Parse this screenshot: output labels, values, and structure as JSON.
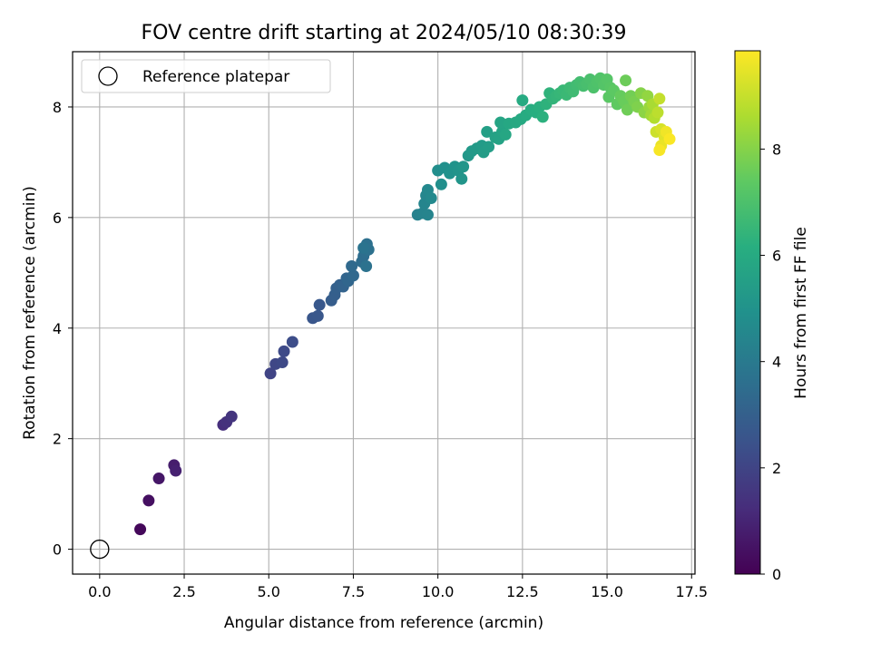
{
  "chart_data": {
    "type": "scatter",
    "title": "FOV centre drift starting at 2024/05/10 08:30:39",
    "xlabel": "Angular distance from reference (arcmin)",
    "ylabel": "Rotation from reference (arcmin)",
    "xlim": [
      -0.8,
      17.6
    ],
    "ylim": [
      -0.45,
      9.0
    ],
    "xticks": [
      0.0,
      2.5,
      5.0,
      7.5,
      10.0,
      12.5,
      15.0,
      17.5
    ],
    "xtick_labels": [
      "0.0",
      "2.5",
      "5.0",
      "7.5",
      "10.0",
      "12.5",
      "15.0",
      "17.5"
    ],
    "yticks": [
      0,
      2,
      4,
      6,
      8
    ],
    "ytick_labels": [
      "0",
      "2",
      "4",
      "6",
      "8"
    ],
    "grid": true,
    "legend": {
      "position": "top-left",
      "entries": [
        "Reference platepar"
      ]
    },
    "reference_point": {
      "x": 0.0,
      "y": 0.0,
      "label": "Reference platepar"
    },
    "colorbar": {
      "label": "Hours from first FF file",
      "colormap": "viridis",
      "range": [
        0,
        9.85
      ],
      "ticks": [
        0,
        2,
        4,
        6,
        8
      ],
      "tick_labels": [
        "0",
        "2",
        "4",
        "6",
        "8"
      ]
    },
    "series": [
      {
        "points": [
          [
            1.2,
            0.36,
            0.2
          ],
          [
            1.45,
            0.88,
            0.4
          ],
          [
            1.75,
            1.28,
            0.6
          ],
          [
            2.2,
            1.52,
            0.8
          ],
          [
            2.25,
            1.42,
            0.9
          ],
          [
            3.65,
            2.25,
            1.3
          ],
          [
            3.75,
            2.3,
            1.4
          ],
          [
            3.9,
            2.4,
            1.5
          ],
          [
            5.05,
            3.18,
            2.0
          ],
          [
            5.2,
            3.35,
            2.1
          ],
          [
            5.4,
            3.38,
            2.15
          ],
          [
            5.45,
            3.58,
            2.2
          ],
          [
            5.7,
            3.75,
            2.3
          ],
          [
            6.3,
            4.18,
            2.6
          ],
          [
            6.45,
            4.22,
            2.65
          ],
          [
            6.5,
            4.42,
            2.7
          ],
          [
            6.85,
            4.5,
            2.9
          ],
          [
            6.95,
            4.6,
            2.95
          ],
          [
            7.0,
            4.72,
            3.0
          ],
          [
            7.1,
            4.78,
            3.05
          ],
          [
            7.2,
            4.75,
            3.1
          ],
          [
            7.3,
            4.9,
            3.2
          ],
          [
            7.35,
            4.85,
            3.25
          ],
          [
            7.5,
            4.95,
            3.3
          ],
          [
            7.45,
            5.12,
            3.35
          ],
          [
            7.75,
            5.2,
            3.45
          ],
          [
            7.8,
            5.3,
            3.5
          ],
          [
            7.85,
            5.38,
            3.55
          ],
          [
            7.9,
            5.52,
            3.6
          ],
          [
            7.95,
            5.42,
            3.65
          ],
          [
            7.88,
            5.12,
            3.7
          ],
          [
            7.8,
            5.45,
            3.75
          ],
          [
            9.4,
            6.05,
            4.3
          ],
          [
            9.55,
            6.08,
            4.35
          ],
          [
            9.7,
            6.05,
            4.4
          ],
          [
            9.6,
            6.25,
            4.45
          ],
          [
            9.65,
            6.4,
            4.5
          ],
          [
            9.7,
            6.5,
            4.55
          ],
          [
            9.8,
            6.35,
            4.6
          ],
          [
            10.0,
            6.85,
            4.8
          ],
          [
            10.1,
            6.6,
            4.85
          ],
          [
            10.2,
            6.9,
            4.9
          ],
          [
            10.35,
            6.8,
            4.95
          ],
          [
            10.5,
            6.92,
            5.0
          ],
          [
            10.6,
            6.85,
            5.05
          ],
          [
            10.7,
            6.7,
            5.1
          ],
          [
            10.75,
            6.92,
            5.15
          ],
          [
            10.9,
            7.12,
            5.2
          ],
          [
            11.0,
            7.2,
            5.25
          ],
          [
            11.15,
            7.25,
            5.3
          ],
          [
            11.3,
            7.3,
            5.35
          ],
          [
            11.35,
            7.18,
            5.4
          ],
          [
            11.5,
            7.28,
            5.45
          ],
          [
            11.45,
            7.55,
            5.5
          ],
          [
            11.7,
            7.45,
            5.6
          ],
          [
            11.8,
            7.42,
            5.65
          ],
          [
            11.9,
            7.55,
            5.7
          ],
          [
            11.85,
            7.72,
            5.75
          ],
          [
            12.0,
            7.5,
            5.8
          ],
          [
            12.1,
            7.7,
            5.85
          ],
          [
            12.3,
            7.72,
            5.9
          ],
          [
            12.45,
            7.78,
            5.95
          ],
          [
            12.5,
            8.12,
            6.0
          ],
          [
            12.6,
            7.85,
            6.05
          ],
          [
            12.75,
            7.95,
            6.1
          ],
          [
            12.9,
            7.9,
            6.15
          ],
          [
            13.0,
            8.0,
            6.2
          ],
          [
            13.1,
            7.82,
            6.25
          ],
          [
            13.2,
            8.05,
            6.3
          ],
          [
            13.3,
            8.25,
            6.35
          ],
          [
            13.4,
            8.15,
            6.4
          ],
          [
            13.5,
            8.2,
            6.45
          ],
          [
            13.6,
            8.25,
            6.5
          ],
          [
            13.7,
            8.3,
            6.55
          ],
          [
            13.8,
            8.22,
            6.6
          ],
          [
            13.9,
            8.35,
            6.65
          ],
          [
            14.0,
            8.28,
            6.7
          ],
          [
            14.1,
            8.4,
            6.75
          ],
          [
            14.2,
            8.45,
            6.8
          ],
          [
            14.3,
            8.38,
            6.85
          ],
          [
            14.4,
            8.42,
            6.9
          ],
          [
            14.5,
            8.5,
            6.95
          ],
          [
            14.6,
            8.35,
            7.0
          ],
          [
            14.7,
            8.45,
            7.05
          ],
          [
            14.8,
            8.52,
            7.1
          ],
          [
            14.9,
            8.4,
            7.15
          ],
          [
            15.0,
            8.5,
            7.2
          ],
          [
            15.1,
            8.35,
            7.25
          ],
          [
            15.05,
            8.18,
            7.3
          ],
          [
            15.2,
            8.3,
            7.35
          ],
          [
            15.3,
            8.05,
            7.4
          ],
          [
            15.4,
            8.2,
            7.5
          ],
          [
            15.5,
            8.1,
            7.55
          ],
          [
            15.55,
            8.48,
            7.6
          ],
          [
            15.6,
            7.95,
            7.65
          ],
          [
            15.7,
            8.2,
            7.7
          ],
          [
            15.8,
            8.1,
            7.8
          ],
          [
            15.9,
            8.0,
            7.9
          ],
          [
            16.0,
            8.25,
            8.0
          ],
          [
            16.1,
            7.9,
            8.1
          ],
          [
            16.2,
            8.2,
            8.2
          ],
          [
            16.25,
            8.0,
            8.3
          ],
          [
            16.3,
            7.85,
            8.45
          ],
          [
            16.35,
            8.05,
            8.55
          ],
          [
            16.4,
            7.8,
            8.7
          ],
          [
            16.5,
            7.9,
            8.85
          ],
          [
            16.55,
            8.15,
            8.95
          ],
          [
            16.45,
            7.55,
            9.1
          ],
          [
            16.6,
            7.6,
            9.25
          ],
          [
            16.7,
            7.45,
            9.4
          ],
          [
            16.6,
            7.3,
            9.55
          ],
          [
            16.75,
            7.55,
            9.65
          ],
          [
            16.55,
            7.22,
            9.75
          ],
          [
            16.85,
            7.42,
            9.8
          ]
        ]
      }
    ]
  }
}
